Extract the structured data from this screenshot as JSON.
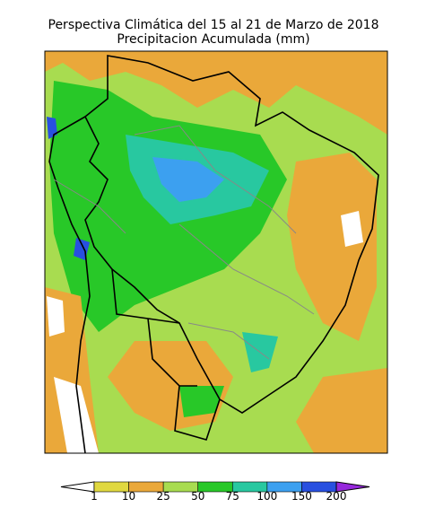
{
  "title": "Perspectiva Climática del 15 al 21 de Marzo de 2018",
  "subtitle": "Precipitacion Acumulada (mm)",
  "colorbar": {
    "levels": [
      1,
      10,
      25,
      50,
      75,
      100,
      150,
      200
    ],
    "colors": [
      "#ffffff",
      "#e0d840",
      "#eaa83a",
      "#a8dc50",
      "#28c828",
      "#28c8a0",
      "#3ca0f0",
      "#2850e0",
      "#9628dc"
    ]
  }
}
